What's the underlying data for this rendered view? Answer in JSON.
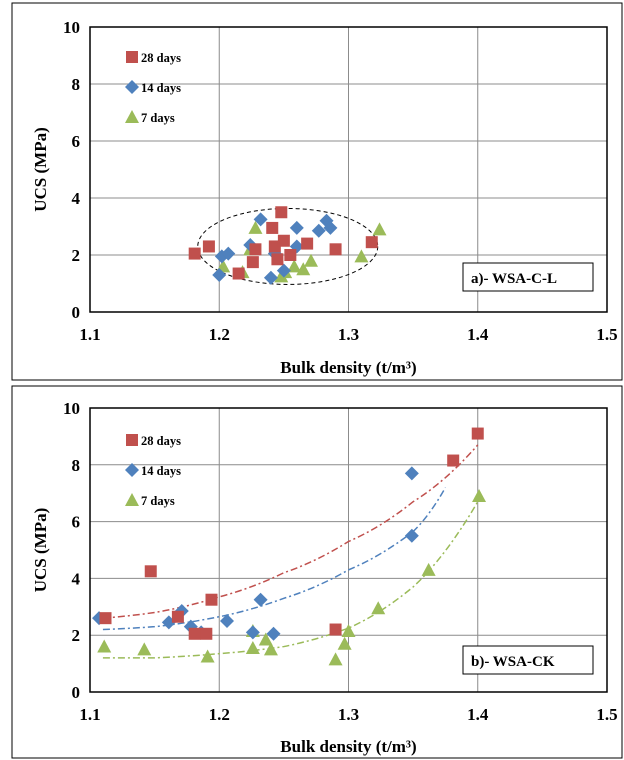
{
  "chart_data": [
    {
      "type": "scatter",
      "panel_label": "a)- WSA-C-L",
      "xlabel": "Bulk density (t/m³)",
      "ylabel": "UCS (MPa)",
      "xlim": [
        1.1,
        1.5
      ],
      "ylim": [
        0,
        10
      ],
      "xticks": [
        "1.1",
        "1.2",
        "1.3",
        "1.4",
        "1.5"
      ],
      "yticks": [
        "0",
        "2",
        "4",
        "6",
        "8",
        "10"
      ],
      "grid": true,
      "legend_position": "top-left",
      "annotation": "dashed ellipse grouping all points",
      "series": [
        {
          "name": "28 days",
          "marker": "square",
          "color": "#c0504d",
          "points": [
            [
              1.181,
              2.05
            ],
            [
              1.192,
              2.3
            ],
            [
              1.215,
              1.35
            ],
            [
              1.226,
              1.75
            ],
            [
              1.228,
              2.2
            ],
            [
              1.241,
              2.95
            ],
            [
              1.243,
              2.3
            ],
            [
              1.245,
              1.85
            ],
            [
              1.248,
              3.5
            ],
            [
              1.25,
              2.5
            ],
            [
              1.255,
              2.0
            ],
            [
              1.268,
              2.4
            ],
            [
              1.29,
              2.2
            ],
            [
              1.318,
              2.45
            ]
          ]
        },
        {
          "name": "14 days",
          "marker": "diamond",
          "color": "#4f81bd",
          "points": [
            [
              1.2,
              1.3
            ],
            [
              1.202,
              1.95
            ],
            [
              1.207,
              2.05
            ],
            [
              1.224,
              2.35
            ],
            [
              1.232,
              3.25
            ],
            [
              1.24,
              1.2
            ],
            [
              1.243,
              2.05
            ],
            [
              1.25,
              1.45
            ],
            [
              1.26,
              2.95
            ],
            [
              1.26,
              2.3
            ],
            [
              1.277,
              2.85
            ],
            [
              1.283,
              3.2
            ],
            [
              1.286,
              2.95
            ]
          ]
        },
        {
          "name": "7 days",
          "marker": "triangle",
          "color": "#9bbb59",
          "points": [
            [
              1.203,
              1.6
            ],
            [
              1.218,
              1.4
            ],
            [
              1.224,
              2.2
            ],
            [
              1.228,
              2.95
            ],
            [
              1.248,
              1.25
            ],
            [
              1.251,
              1.4
            ],
            [
              1.258,
              1.6
            ],
            [
              1.265,
              1.5
            ],
            [
              1.271,
              1.8
            ],
            [
              1.31,
              1.95
            ],
            [
              1.324,
              2.9
            ]
          ]
        }
      ]
    },
    {
      "type": "scatter",
      "panel_label": "b)- WSA-CK",
      "xlabel": "Bulk density (t/m³)",
      "ylabel": "UCS (MPa)",
      "xlim": [
        1.1,
        1.5
      ],
      "ylim": [
        0,
        10
      ],
      "xticks": [
        "1.1",
        "1.2",
        "1.3",
        "1.4",
        "1.5"
      ],
      "yticks": [
        "0",
        "2",
        "4",
        "6",
        "8",
        "10"
      ],
      "grid": true,
      "legend_position": "top-left",
      "series": [
        {
          "name": "28 days",
          "marker": "square",
          "color": "#c0504d",
          "points": [
            [
              1.112,
              2.6
            ],
            [
              1.147,
              4.25
            ],
            [
              1.168,
              2.65
            ],
            [
              1.181,
              2.05
            ],
            [
              1.19,
              2.05
            ],
            [
              1.194,
              3.25
            ],
            [
              1.29,
              2.2
            ],
            [
              1.381,
              8.15
            ],
            [
              1.4,
              9.1
            ]
          ],
          "trend": [
            [
              1.11,
              2.6
            ],
            [
              1.15,
              2.8
            ],
            [
              1.2,
              3.35
            ],
            [
              1.25,
              4.2
            ],
            [
              1.3,
              5.3
            ],
            [
              1.35,
              6.7
            ],
            [
              1.4,
              8.7
            ]
          ]
        },
        {
          "name": "14 days",
          "marker": "diamond",
          "color": "#4f81bd",
          "points": [
            [
              1.107,
              2.6
            ],
            [
              1.161,
              2.45
            ],
            [
              1.171,
              2.85
            ],
            [
              1.178,
              2.3
            ],
            [
              1.186,
              2.1
            ],
            [
              1.206,
              2.5
            ],
            [
              1.226,
              2.1
            ],
            [
              1.232,
              3.25
            ],
            [
              1.242,
              2.05
            ],
            [
              1.349,
              7.7
            ],
            [
              1.349,
              5.5
            ]
          ],
          "trend": [
            [
              1.11,
              2.2
            ],
            [
              1.15,
              2.3
            ],
            [
              1.2,
              2.65
            ],
            [
              1.25,
              3.3
            ],
            [
              1.3,
              4.3
            ],
            [
              1.35,
              5.65
            ],
            [
              1.375,
              7.2
            ]
          ]
        },
        {
          "name": "7 days",
          "marker": "triangle",
          "color": "#9bbb59",
          "points": [
            [
              1.111,
              1.6
            ],
            [
              1.142,
              1.5
            ],
            [
              1.191,
              1.25
            ],
            [
              1.226,
              2.15
            ],
            [
              1.226,
              1.55
            ],
            [
              1.236,
              1.85
            ],
            [
              1.24,
              1.5
            ],
            [
              1.29,
              1.15
            ],
            [
              1.297,
              1.7
            ],
            [
              1.3,
              2.15
            ],
            [
              1.323,
              2.95
            ],
            [
              1.362,
              4.3
            ],
            [
              1.401,
              6.9
            ]
          ],
          "trend": [
            [
              1.11,
              1.2
            ],
            [
              1.15,
              1.2
            ],
            [
              1.2,
              1.35
            ],
            [
              1.25,
              1.6
            ],
            [
              1.3,
              2.25
            ],
            [
              1.35,
              3.7
            ],
            [
              1.4,
              6.7
            ]
          ]
        }
      ]
    }
  ]
}
